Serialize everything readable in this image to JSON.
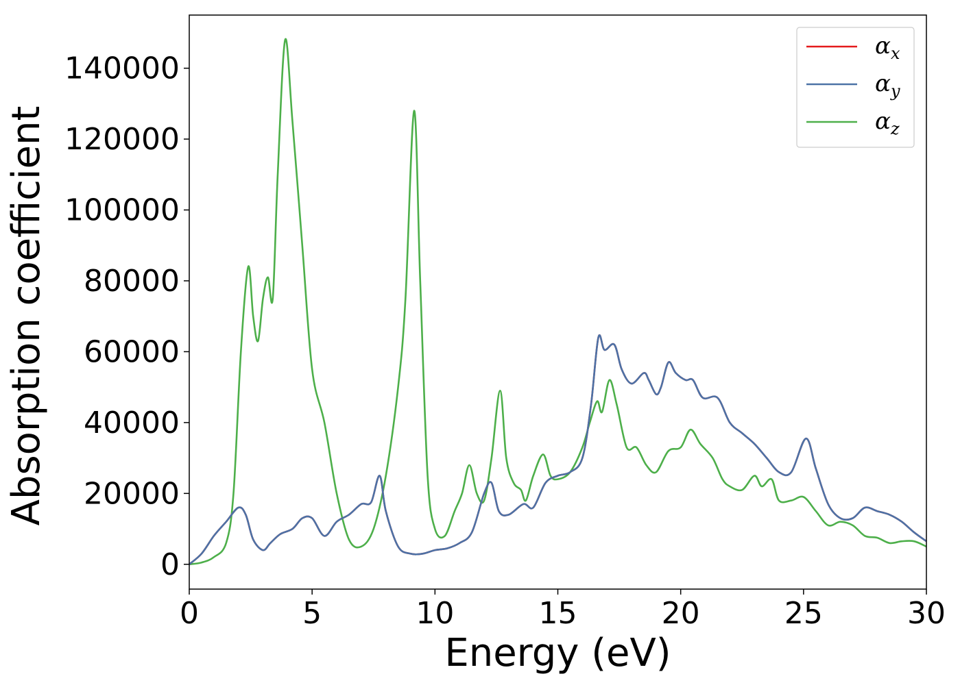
{
  "chart_data": {
    "type": "line",
    "xlabel": "Energy (eV)",
    "ylabel": "Absorption coefficient",
    "xlim": [
      0,
      30
    ],
    "ylim": [
      -7000,
      155000
    ],
    "xticks": [
      0,
      5,
      10,
      15,
      20,
      25,
      30
    ],
    "xtick_labels": [
      "0",
      "5",
      "10",
      "15",
      "20",
      "25",
      "30"
    ],
    "yticks": [
      0,
      20000,
      40000,
      60000,
      80000,
      100000,
      120000,
      140000
    ],
    "ytick_labels": [
      "0",
      "20000",
      "40000",
      "60000",
      "80000",
      "100000",
      "120000",
      "140000"
    ],
    "grid": false,
    "legend_position": "top-right",
    "series": [
      {
        "name": "α",
        "subscript": "x",
        "color": "#e41a1c",
        "x": [
          0,
          0.5,
          1.0,
          1.5,
          2.0,
          2.3,
          2.6,
          3.0,
          3.3,
          3.7,
          4.2,
          4.6,
          5.0,
          5.5,
          6.0,
          6.5,
          7.0,
          7.4,
          7.75,
          8.0,
          8.5,
          9.0,
          9.5,
          10.0,
          10.5,
          11.0,
          11.5,
          12.0,
          12.3,
          12.6,
          13.0,
          13.6,
          14.0,
          14.5,
          15.0,
          15.5,
          16.0,
          16.35,
          16.65,
          16.9,
          17.3,
          17.6,
          18.0,
          18.5,
          18.7,
          19.0,
          19.2,
          19.5,
          19.8,
          20.2,
          20.5,
          20.9,
          21.5,
          22.0,
          22.5,
          23.0,
          23.5,
          24.0,
          24.5,
          25.1,
          25.5,
          26.0,
          26.5,
          27.0,
          27.5,
          28.0,
          28.5,
          29.0,
          29.5,
          30.0
        ],
        "y": [
          0,
          3000,
          8000,
          12000,
          16000,
          14000,
          7000,
          4000,
          6000,
          8500,
          10000,
          13000,
          13000,
          8000,
          12000,
          14000,
          17000,
          17500,
          25000,
          15000,
          5000,
          3000,
          3000,
          4000,
          4500,
          6000,
          9000,
          20000,
          23000,
          15000,
          14000,
          17000,
          16000,
          23000,
          25000,
          26000,
          30000,
          45000,
          64000,
          60500,
          62000,
          55000,
          51000,
          54000,
          52000,
          48000,
          50000,
          57000,
          54000,
          52000,
          52000,
          47000,
          47000,
          40000,
          37000,
          34000,
          30000,
          26000,
          26000,
          35500,
          27000,
          17000,
          13000,
          13000,
          16000,
          15000,
          14000,
          12000,
          9000,
          6500
        ]
      },
      {
        "name": "α",
        "subscript": "y",
        "color": "#4c72a6",
        "x": [
          0,
          0.5,
          1.0,
          1.5,
          2.0,
          2.3,
          2.6,
          3.0,
          3.3,
          3.7,
          4.2,
          4.6,
          5.0,
          5.5,
          6.0,
          6.5,
          7.0,
          7.4,
          7.75,
          8.0,
          8.5,
          9.0,
          9.5,
          10.0,
          10.5,
          11.0,
          11.5,
          12.0,
          12.3,
          12.6,
          13.0,
          13.6,
          14.0,
          14.5,
          15.0,
          15.5,
          16.0,
          16.35,
          16.65,
          16.9,
          17.3,
          17.6,
          18.0,
          18.5,
          18.7,
          19.0,
          19.2,
          19.5,
          19.8,
          20.2,
          20.5,
          20.9,
          21.5,
          22.0,
          22.5,
          23.0,
          23.5,
          24.0,
          24.5,
          25.1,
          25.5,
          26.0,
          26.5,
          27.0,
          27.5,
          28.0,
          28.5,
          29.0,
          29.5,
          30.0
        ],
        "y": [
          0,
          3000,
          8000,
          12000,
          16000,
          14000,
          7000,
          4000,
          6000,
          8500,
          10000,
          13000,
          13000,
          8000,
          12000,
          14000,
          17000,
          17500,
          25000,
          15000,
          5000,
          3000,
          3000,
          4000,
          4500,
          6000,
          9000,
          20000,
          23000,
          15000,
          14000,
          17000,
          16000,
          23000,
          25000,
          26000,
          30000,
          45000,
          64000,
          60500,
          62000,
          55000,
          51000,
          54000,
          52000,
          48000,
          50000,
          57000,
          54000,
          52000,
          52000,
          47000,
          47000,
          40000,
          37000,
          34000,
          30000,
          26000,
          26000,
          35500,
          27000,
          17000,
          13000,
          13000,
          16000,
          15000,
          14000,
          12000,
          9000,
          6500
        ]
      },
      {
        "name": "α",
        "subscript": "z",
        "color": "#4daf4a",
        "x": [
          0,
          0.5,
          1.0,
          1.5,
          1.8,
          2.1,
          2.4,
          2.6,
          2.8,
          3.0,
          3.2,
          3.4,
          3.6,
          3.9,
          4.2,
          4.6,
          5.0,
          5.5,
          6.0,
          6.5,
          7.0,
          7.5,
          8.0,
          8.5,
          8.8,
          9.15,
          9.4,
          9.7,
          10.0,
          10.4,
          10.8,
          11.1,
          11.4,
          11.7,
          12.0,
          12.3,
          12.65,
          12.9,
          13.2,
          13.5,
          13.7,
          14.0,
          14.4,
          14.7,
          15.0,
          15.5,
          16.0,
          16.3,
          16.6,
          16.8,
          17.1,
          17.4,
          17.8,
          18.2,
          18.6,
          19.0,
          19.5,
          20.0,
          20.4,
          20.8,
          21.3,
          21.7,
          22.0,
          22.5,
          23.0,
          23.3,
          23.7,
          24.0,
          24.5,
          25.0,
          25.5,
          26.0,
          26.5,
          27.0,
          27.5,
          28.0,
          28.5,
          29.0,
          29.5,
          30.0
        ],
        "y": [
          0,
          500,
          2000,
          6000,
          20000,
          60000,
          84000,
          70000,
          63000,
          75000,
          81000,
          75000,
          110000,
          148000,
          125000,
          90000,
          55000,
          40000,
          20000,
          7000,
          5000,
          10000,
          25000,
          50000,
          75000,
          128000,
          80000,
          25000,
          10000,
          8000,
          15000,
          20000,
          28000,
          20000,
          18000,
          30000,
          49000,
          30000,
          23000,
          21000,
          18000,
          25000,
          31000,
          25000,
          24000,
          26000,
          33000,
          40000,
          46000,
          43000,
          52000,
          45000,
          33000,
          33000,
          28000,
          26000,
          32000,
          33000,
          38000,
          34000,
          30000,
          24000,
          22000,
          21000,
          25000,
          22000,
          24000,
          18000,
          18000,
          19000,
          15000,
          11000,
          12000,
          11000,
          8000,
          7500,
          6000,
          6500,
          6500,
          5000
        ]
      }
    ]
  }
}
